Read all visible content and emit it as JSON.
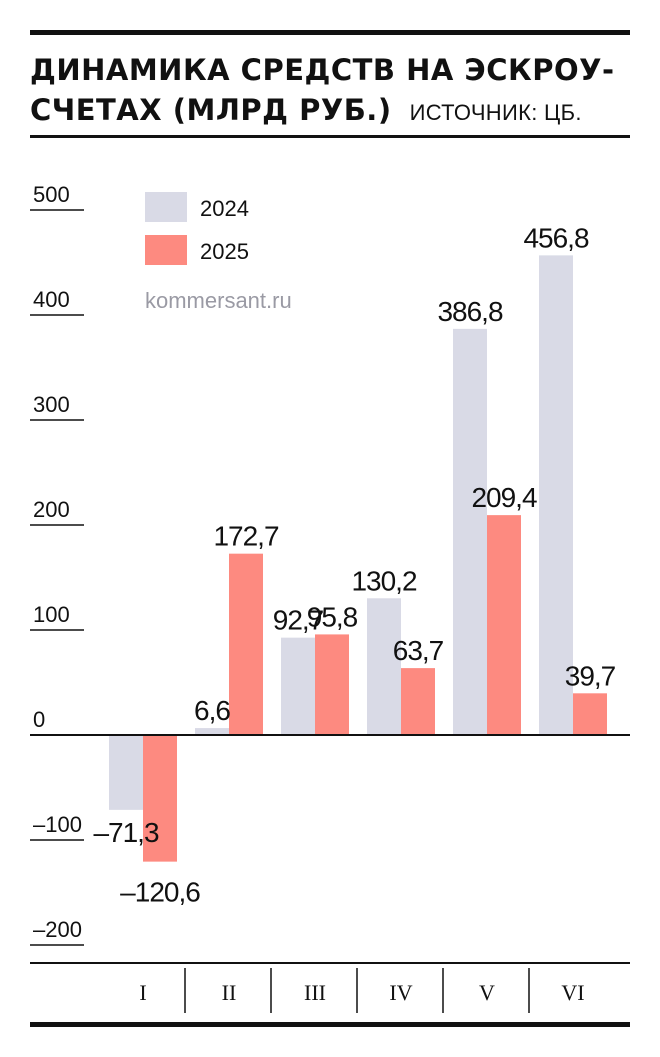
{
  "header": {
    "title_line1": "ДИНАМИКА СРЕДСТВ НА ЭСКРОУ-",
    "title_line2": "СЧЕТАХ (МЛРД РУБ.)",
    "source": "ИСТОЧНИК: ЦБ."
  },
  "watermark": "kommersant.ru",
  "colors": {
    "series_2024": "#d9dae6",
    "series_2025": "#fd8a80",
    "axis": "#111111"
  },
  "chart_data": {
    "type": "bar",
    "categories": [
      "I",
      "II",
      "III",
      "IV",
      "V",
      "VI"
    ],
    "series": [
      {
        "name": "2024",
        "values": [
          -71.3,
          6.6,
          92.7,
          130.2,
          386.8,
          456.8
        ],
        "labels": [
          "–71,3",
          "6,6",
          "92,7",
          "130,2",
          "386,8",
          "456,8"
        ]
      },
      {
        "name": "2025",
        "values": [
          -120.6,
          172.7,
          95.8,
          63.7,
          209.4,
          39.7
        ],
        "labels": [
          "–120,6",
          "172,7",
          "95,8",
          "63,7",
          "209,4",
          "39,7"
        ]
      }
    ],
    "yticks": [
      500,
      400,
      300,
      200,
      100,
      0,
      -100,
      -200
    ],
    "ytick_labels": [
      "500",
      "400",
      "300",
      "200",
      "100",
      "0",
      "–100",
      "–200"
    ],
    "ylim": [
      -200,
      500
    ],
    "legend_position": "top-left",
    "grid": false
  }
}
